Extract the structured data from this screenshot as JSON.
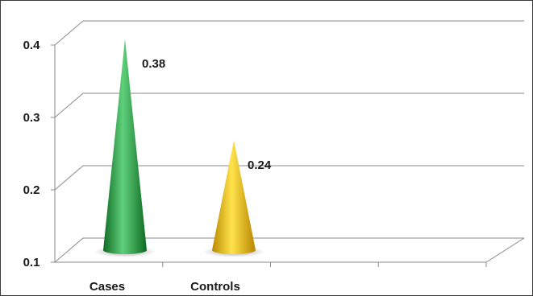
{
  "chart_data": {
    "type": "bar",
    "bar_shape": "cone",
    "style": "3d",
    "categories": [
      "Cases",
      "Controls"
    ],
    "values": [
      0.38,
      0.24
    ],
    "data_labels": [
      "0.38",
      "0.24"
    ],
    "colors": [
      "#1e9a3c",
      "#f0b800"
    ],
    "ylim": [
      0.1,
      0.4
    ],
    "yticks": [
      0.1,
      0.2,
      0.3,
      0.4
    ],
    "ytick_labels": [
      "0.1",
      "0.2",
      "0.3",
      "0.4"
    ],
    "grid": true,
    "legend": "none",
    "title": "",
    "xlabel": "",
    "ylabel": ""
  }
}
